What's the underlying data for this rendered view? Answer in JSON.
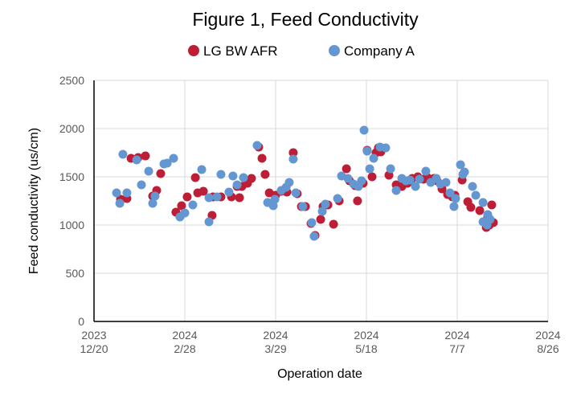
{
  "chart_data": {
    "type": "scatter",
    "title": "Figure 1, Feed Conductivity",
    "xlabel": "Operation date",
    "ylabel": "Feed conductivity (us/cm)",
    "ylim": [
      0,
      2500
    ],
    "yticks": [
      0,
      500,
      1000,
      1500,
      2000,
      2500
    ],
    "xlim": [
      0,
      250
    ],
    "xunit": "days since 2023-12-20 (axis spacing)",
    "xticks": [
      {
        "value": 0,
        "line1": "2023",
        "line2": "12/20"
      },
      {
        "value": 50,
        "line1": "2024",
        "line2": "2/28"
      },
      {
        "value": 100,
        "line1": "2024",
        "line2": "3/29"
      },
      {
        "value": 150,
        "line1": "2024",
        "line2": "5/18"
      },
      {
        "value": 200,
        "line1": "2024",
        "line2": "7/7"
      },
      {
        "value": 250,
        "line1": "2024",
        "line2": "8/26"
      }
    ],
    "grid": true,
    "legend_position": "top",
    "series": [
      {
        "name": "LG BW AFR",
        "color": "#be1e35",
        "points": [
          [
            14.6,
            1267
          ],
          [
            18.1,
            1275
          ],
          [
            20.4,
            1692
          ],
          [
            24.3,
            1700
          ],
          [
            28.3,
            1717
          ],
          [
            32.3,
            1300
          ],
          [
            34.5,
            1358
          ],
          [
            36.7,
            1533
          ],
          [
            45.1,
            1133
          ],
          [
            48.2,
            1200
          ],
          [
            51.3,
            1292
          ],
          [
            55.8,
            1492
          ],
          [
            57.1,
            1333
          ],
          [
            60.2,
            1350
          ],
          [
            65.5,
            1292
          ],
          [
            65.0,
            1100
          ],
          [
            69.9,
            1292
          ],
          [
            75.7,
            1292
          ],
          [
            78.8,
            1400
          ],
          [
            80.1,
            1283
          ],
          [
            81.4,
            1400
          ],
          [
            84.5,
            1433
          ],
          [
            86.7,
            1483
          ],
          [
            90.7,
            1808
          ],
          [
            92.5,
            1692
          ],
          [
            94.2,
            1525
          ],
          [
            96.5,
            1333
          ],
          [
            100.0,
            1308
          ],
          [
            103.1,
            1350
          ],
          [
            106.2,
            1342
          ],
          [
            109.7,
            1750
          ],
          [
            111.9,
            1325
          ],
          [
            114.2,
            1192
          ],
          [
            116.4,
            1192
          ],
          [
            119.5,
            1017
          ],
          [
            121.7,
            892
          ],
          [
            124.8,
            1058
          ],
          [
            126.1,
            1192
          ],
          [
            128.8,
            1208
          ],
          [
            131.9,
            1008
          ],
          [
            135.0,
            1250
          ],
          [
            139.0,
            1583
          ],
          [
            140.7,
            1458
          ],
          [
            143.8,
            1408
          ],
          [
            145.1,
            1250
          ],
          [
            148.2,
            1433
          ],
          [
            150.4,
            1775
          ],
          [
            153.1,
            1500
          ],
          [
            155.3,
            1750
          ],
          [
            156.6,
            1800
          ],
          [
            157.9,
            1758
          ],
          [
            162.4,
            1517
          ],
          [
            166.4,
            1417
          ],
          [
            169.5,
            1400
          ],
          [
            172.6,
            1433
          ],
          [
            175.2,
            1483
          ],
          [
            178.3,
            1500
          ],
          [
            181.4,
            1475
          ],
          [
            183.6,
            1492
          ],
          [
            187.2,
            1483
          ],
          [
            188.9,
            1458
          ],
          [
            191.6,
            1375
          ],
          [
            194.7,
            1317
          ],
          [
            197.3,
            1292
          ],
          [
            198.7,
            1308
          ],
          [
            202.7,
            1467
          ],
          [
            205.8,
            1242
          ],
          [
            207.5,
            1183
          ],
          [
            212.4,
            1150
          ],
          [
            216.0,
            975
          ],
          [
            217.7,
            1000
          ],
          [
            219.9,
            1025
          ],
          [
            216.8,
            1083
          ],
          [
            219.0,
            1208
          ]
        ]
      },
      {
        "name": "Company A",
        "color": "#6497d1",
        "points": [
          [
            12.4,
            1333
          ],
          [
            14.2,
            1225
          ],
          [
            15.9,
            1733
          ],
          [
            18.1,
            1333
          ],
          [
            23.5,
            1675
          ],
          [
            26.1,
            1417
          ],
          [
            30.1,
            1558
          ],
          [
            32.3,
            1225
          ],
          [
            33.6,
            1300
          ],
          [
            38.5,
            1633
          ],
          [
            40.3,
            1642
          ],
          [
            43.8,
            1692
          ],
          [
            47.3,
            1083
          ],
          [
            50.0,
            1125
          ],
          [
            54.4,
            1208
          ],
          [
            59.3,
            1575
          ],
          [
            63.3,
            1283
          ],
          [
            63.3,
            1033
          ],
          [
            67.7,
            1292
          ],
          [
            69.9,
            1525
          ],
          [
            74.3,
            1342
          ],
          [
            76.5,
            1508
          ],
          [
            78.8,
            1417
          ],
          [
            82.3,
            1492
          ],
          [
            89.8,
            1825
          ],
          [
            95.6,
            1233
          ],
          [
            98.7,
            1200
          ],
          [
            99.6,
            1267
          ],
          [
            103.1,
            1358
          ],
          [
            105.8,
            1392
          ],
          [
            107.5,
            1442
          ],
          [
            109.7,
            1683
          ],
          [
            111.1,
            1333
          ],
          [
            115.0,
            1192
          ],
          [
            119.9,
            1025
          ],
          [
            121.2,
            883
          ],
          [
            125.7,
            1142
          ],
          [
            127.4,
            1217
          ],
          [
            134.1,
            1275
          ],
          [
            136.3,
            1508
          ],
          [
            139.8,
            1483
          ],
          [
            142.9,
            1425
          ],
          [
            145.6,
            1400
          ],
          [
            147.3,
            1458
          ],
          [
            148.7,
            1983
          ],
          [
            150.4,
            1767
          ],
          [
            151.8,
            1583
          ],
          [
            154.0,
            1692
          ],
          [
            157.5,
            1808
          ],
          [
            160.6,
            1800
          ],
          [
            163.3,
            1583
          ],
          [
            166.4,
            1358
          ],
          [
            169.5,
            1483
          ],
          [
            171.7,
            1458
          ],
          [
            173.9,
            1467
          ],
          [
            177.0,
            1400
          ],
          [
            179.2,
            1475
          ],
          [
            182.7,
            1558
          ],
          [
            185.4,
            1442
          ],
          [
            188.5,
            1483
          ],
          [
            190.7,
            1425
          ],
          [
            193.8,
            1442
          ],
          [
            196.0,
            1333
          ],
          [
            198.2,
            1192
          ],
          [
            199.1,
            1275
          ],
          [
            203.1,
            1525
          ],
          [
            201.8,
            1625
          ],
          [
            204.0,
            1550
          ],
          [
            208.4,
            1400
          ],
          [
            210.2,
            1308
          ],
          [
            214.2,
            1233
          ],
          [
            214.2,
            1033
          ],
          [
            216.8,
            1108
          ],
          [
            216.4,
            1000
          ],
          [
            218.1,
            1058
          ]
        ]
      }
    ]
  }
}
